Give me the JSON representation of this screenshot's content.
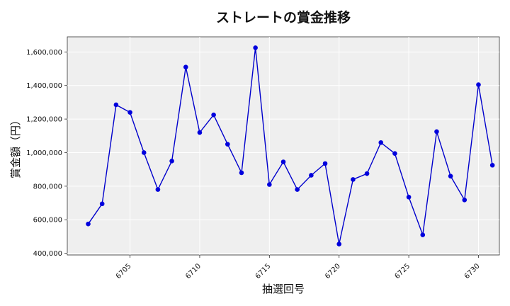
{
  "chart_data": {
    "type": "line",
    "title": "ストレートの賞金推移",
    "xlabel": "抽選回号",
    "ylabel": "賞金額（円）",
    "xlim": [
      6700.5,
      6731.5
    ],
    "ylim": [
      390000,
      1690000
    ],
    "x_ticks": [
      6705,
      6710,
      6715,
      6720,
      6725,
      6730
    ],
    "y_ticks": [
      400000,
      600000,
      800000,
      1000000,
      1200000,
      1400000,
      1600000
    ],
    "y_tick_labels": [
      "400,000",
      "600,000",
      "800,000",
      "1,000,000",
      "1,200,000",
      "1,400,000",
      "1,600,000"
    ],
    "grid": true,
    "series": [
      {
        "color": "#0000cc",
        "marker_color": "#0000dd",
        "x": [
          6702,
          6703,
          6704,
          6705,
          6706,
          6707,
          6708,
          6709,
          6710,
          6711,
          6712,
          6713,
          6714,
          6715,
          6716,
          6717,
          6718,
          6719,
          6720,
          6721,
          6722,
          6723,
          6724,
          6725,
          6726,
          6727,
          6728,
          6729,
          6730,
          6731
        ],
        "values": [
          575000,
          695000,
          1285000,
          1240000,
          1000000,
          780000,
          950000,
          1510000,
          1120000,
          1225000,
          1050000,
          880000,
          1625000,
          810000,
          945000,
          780000,
          865000,
          935000,
          455000,
          840000,
          875000,
          1060000,
          995000,
          735000,
          510000,
          1125000,
          860000,
          718000,
          1405000,
          925000
        ]
      }
    ]
  }
}
